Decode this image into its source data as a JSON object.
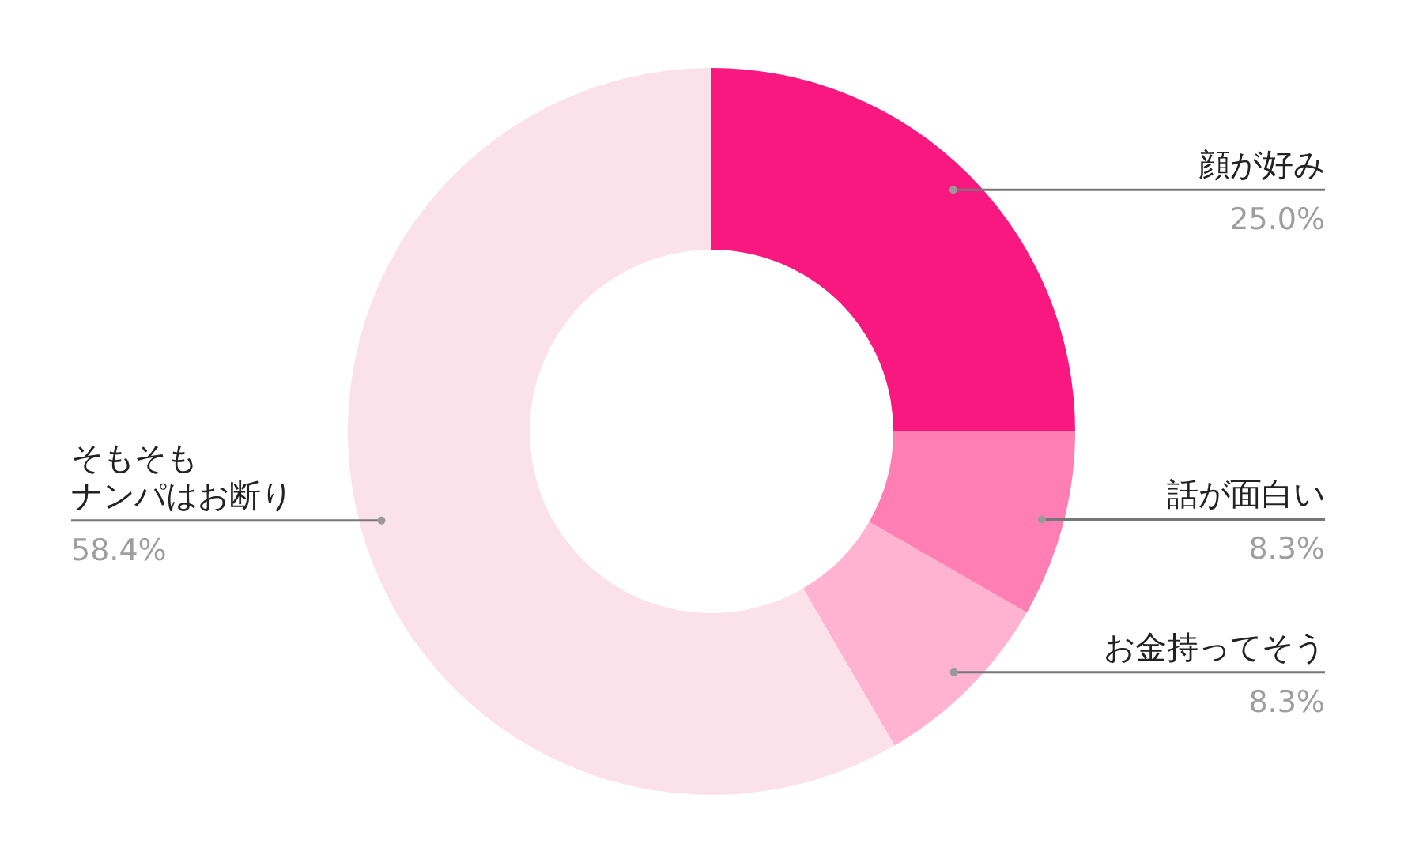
{
  "chart_data": {
    "type": "donut",
    "categories": [
      "顔が好み",
      "話が面白い",
      "お金持ってそう",
      "そもそもナンパはお断り"
    ],
    "values": [
      25.0,
      8.3,
      8.3,
      58.4
    ],
    "colors": [
      "#f8187f",
      "#ff7eb3",
      "#ffb3d1",
      "#fbe1ea"
    ],
    "value_labels": [
      "25.0%",
      "8.3%",
      "8.3%",
      "58.4%"
    ]
  }
}
